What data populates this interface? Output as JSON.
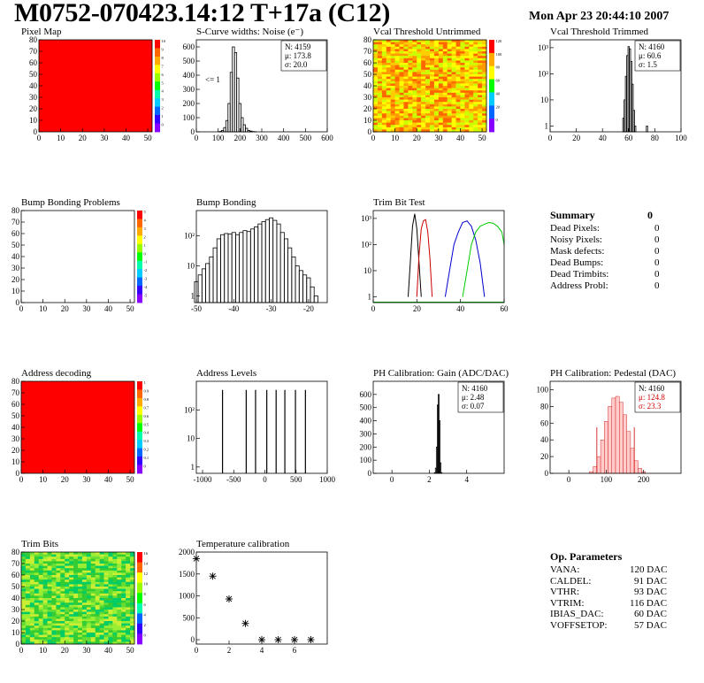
{
  "header": {
    "title": "M0752-070423.14:12 T+17a (C12)",
    "date": "Mon Apr 23 20:44:10 2007"
  },
  "chart_data": [
    {
      "id": "pixel_map",
      "type": "heatmap",
      "title": "Pixel Map",
      "xlim": [
        0,
        52
      ],
      "ylim": [
        0,
        80
      ],
      "xticks": [
        0,
        10,
        20,
        30,
        40,
        50
      ],
      "yticks": [
        0,
        10,
        20,
        30,
        40,
        50,
        60,
        70,
        80
      ],
      "palette_labels": [
        "10",
        "9",
        "8",
        "7",
        "6",
        "5",
        "4",
        "3",
        "2",
        "1",
        "0"
      ],
      "fill": "uniform",
      "value": 10
    },
    {
      "id": "noise",
      "type": "bar",
      "title": "S-Curve widths: Noise (e⁻)",
      "xlim": [
        0,
        600
      ],
      "ylim": [
        0,
        650
      ],
      "xticks": [
        0,
        100,
        200,
        300,
        400,
        500,
        600
      ],
      "yticks": [
        0,
        100,
        200,
        300,
        400,
        500,
        600
      ],
      "annotation": "<= 1",
      "stats": [
        "N: 4159",
        "μ: 173.8",
        "σ: 20.0"
      ],
      "x": [
        110,
        120,
        130,
        140,
        150,
        160,
        170,
        180,
        190,
        200,
        210,
        220,
        230,
        240,
        250,
        260,
        270
      ],
      "values": [
        3,
        10,
        30,
        80,
        200,
        420,
        600,
        560,
        380,
        200,
        100,
        50,
        25,
        10,
        5,
        2,
        1
      ]
    },
    {
      "id": "vcal_untrimmed",
      "type": "heatmap",
      "title": "Vcal Threshold Untrimmed",
      "xlim": [
        0,
        52
      ],
      "ylim": [
        0,
        80
      ],
      "xticks": [
        0,
        10,
        20,
        30,
        40,
        50
      ],
      "yticks": [
        0,
        10,
        20,
        30,
        40,
        50,
        60,
        70,
        80
      ],
      "palette_labels": [
        "120",
        "100",
        "80",
        "60",
        "40",
        "20",
        "0"
      ],
      "fill": "noise",
      "colors": [
        "#ff9900",
        "#ffcc00",
        "#ffff00",
        "#ccff00",
        "#ff6600"
      ]
    },
    {
      "id": "vcal_trimmed",
      "type": "bar",
      "title": "Vcal Threshold Trimmed",
      "log": true,
      "xlim": [
        0,
        100
      ],
      "ylim": [
        0.6,
        2000
      ],
      "xticks": [
        0,
        20,
        40,
        60,
        80,
        100
      ],
      "yticks": [
        1,
        10,
        100,
        1000
      ],
      "ytick_labels": [
        "1",
        "10",
        "10²",
        "10³"
      ],
      "stats": [
        "N: 4160",
        "μ: 60.6",
        "σ:  1.5"
      ],
      "x": [
        56,
        57,
        58,
        59,
        60,
        61,
        62,
        63,
        64,
        65,
        74
      ],
      "values": [
        2,
        10,
        80,
        500,
        1100,
        900,
        300,
        40,
        4,
        1,
        1
      ]
    },
    {
      "id": "bump_problems",
      "type": "heatmap",
      "title": "Bump Bonding Problems",
      "xlim": [
        0,
        52
      ],
      "ylim": [
        0,
        80
      ],
      "xticks": [
        0,
        10,
        20,
        30,
        40,
        50
      ],
      "yticks": [
        0,
        10,
        20,
        30,
        40,
        50,
        60,
        70,
        80
      ],
      "palette_labels": [
        "5",
        "4",
        "3",
        "2",
        "1",
        "0",
        "-1",
        "-2",
        "-3",
        "-4",
        "-5"
      ],
      "fill": "empty"
    },
    {
      "id": "bump_bonding",
      "type": "bar",
      "title": "Bump Bonding",
      "log": true,
      "xlim": [
        -50,
        -15
      ],
      "ylim": [
        0.6,
        700
      ],
      "xticks": [
        -50,
        -40,
        -30,
        -20
      ],
      "yticks": [
        1,
        10,
        100
      ],
      "ytick_labels": [
        "1",
        "10",
        "10²"
      ],
      "x": [
        -50,
        -49,
        -48,
        -47,
        -46,
        -45,
        -44,
        -43,
        -42,
        -41,
        -40,
        -39,
        -38,
        -37,
        -36,
        -35,
        -34,
        -33,
        -32,
        -31,
        -30,
        -29,
        -28,
        -27,
        -26,
        -25,
        -24,
        -23,
        -22,
        -21,
        -20,
        -19,
        -18
      ],
      "values": [
        3,
        5,
        8,
        12,
        20,
        40,
        80,
        110,
        120,
        115,
        130,
        110,
        130,
        150,
        140,
        170,
        200,
        250,
        300,
        350,
        400,
        330,
        250,
        130,
        80,
        40,
        20,
        10,
        7,
        5,
        4,
        2,
        1
      ]
    },
    {
      "id": "trim_bit_test",
      "type": "line",
      "title": "Trim Bit Test",
      "log": true,
      "xlim": [
        0,
        60
      ],
      "ylim": [
        0.6,
        2000
      ],
      "xticks": [
        0,
        20,
        40,
        60
      ],
      "yticks": [
        1,
        10,
        100,
        1000
      ],
      "ytick_labels": [
        "1",
        "10",
        "10²",
        "10³"
      ],
      "series": [
        {
          "color": "#000000",
          "x": [
            16,
            17,
            18,
            19,
            20,
            21,
            22
          ],
          "values": [
            1,
            20,
            500,
            1500,
            400,
            20,
            1
          ]
        },
        {
          "color": "#cc0000",
          "x": [
            20,
            21,
            22,
            23,
            24,
            25,
            26,
            27
          ],
          "values": [
            1,
            40,
            400,
            800,
            900,
            300,
            30,
            1
          ]
        },
        {
          "color": "#0000cc",
          "x": [
            33,
            35,
            37,
            39,
            41,
            43,
            45,
            47,
            49,
            51
          ],
          "values": [
            1,
            10,
            100,
            300,
            700,
            800,
            500,
            150,
            20,
            1
          ]
        },
        {
          "color": "#00cc00",
          "x": [
            41,
            43,
            45,
            47,
            49,
            51,
            53,
            55,
            57,
            59,
            60
          ],
          "values": [
            1,
            10,
            100,
            300,
            500,
            600,
            700,
            650,
            500,
            300,
            100
          ]
        }
      ]
    },
    {
      "id": "address_decoding",
      "type": "heatmap",
      "title": "Address decoding",
      "xlim": [
        0,
        52
      ],
      "ylim": [
        0,
        80
      ],
      "xticks": [
        0,
        10,
        20,
        30,
        40,
        50
      ],
      "yticks": [
        0,
        10,
        20,
        30,
        40,
        50,
        60,
        70,
        80
      ],
      "palette_labels": [
        "1",
        "0.9",
        "0.8",
        "0.7",
        "0.6",
        "0.5",
        "0.4",
        "0.3",
        "0.2",
        "0.1",
        "0"
      ],
      "fill": "uniform",
      "value": 1
    },
    {
      "id": "address_levels",
      "type": "bar",
      "title": "Address Levels",
      "log": true,
      "xlim": [
        -1100,
        1000
      ],
      "ylim": [
        0.6,
        1000
      ],
      "xticks": [
        -1000,
        -500,
        0,
        500,
        1000
      ],
      "yticks": [
        1,
        10,
        100
      ],
      "ytick_labels": [
        "1",
        "10",
        "10²"
      ],
      "x": [
        -680,
        -300,
        -150,
        30,
        180,
        320,
        490,
        650
      ],
      "values": [
        500,
        500,
        500,
        500,
        500,
        500,
        500,
        500
      ]
    },
    {
      "id": "ph_gain",
      "type": "bar",
      "title": "PH Calibration: Gain (ADC/DAC)",
      "xlim": [
        -1,
        6
      ],
      "ylim": [
        0,
        700
      ],
      "xticks": [
        0,
        2,
        4
      ],
      "yticks": [
        0,
        100,
        200,
        300,
        400,
        500,
        600
      ],
      "stats": [
        "N: 4160",
        "μ: 2.48",
        "σ: 0.07"
      ],
      "x": [
        2.3,
        2.35,
        2.4,
        2.45,
        2.5,
        2.55,
        2.6,
        2.65
      ],
      "values": [
        5,
        40,
        200,
        520,
        600,
        400,
        80,
        5
      ]
    },
    {
      "id": "ph_pedestal",
      "type": "bar",
      "title": "PH Calibration: Pedestal (DAC)",
      "xlim": [
        -50,
        300
      ],
      "ylim": [
        0,
        110
      ],
      "xticks": [
        0,
        100,
        200
      ],
      "yticks": [
        0,
        20,
        40,
        60,
        80,
        100
      ],
      "stats": [
        "N: 4160",
        "μ: 124.8",
        "σ: 23.3"
      ],
      "x": [
        60,
        70,
        80,
        90,
        100,
        110,
        120,
        130,
        140,
        150,
        160,
        170,
        180,
        190,
        200
      ],
      "values": [
        2,
        8,
        20,
        40,
        62,
        80,
        90,
        92,
        85,
        70,
        50,
        30,
        15,
        6,
        2
      ]
    },
    {
      "id": "trim_bits",
      "type": "heatmap",
      "title": "Trim Bits",
      "xlim": [
        0,
        52
      ],
      "ylim": [
        0,
        80
      ],
      "xticks": [
        0,
        10,
        20,
        30,
        40,
        50
      ],
      "yticks": [
        0,
        10,
        20,
        30,
        40,
        50,
        60,
        70,
        80
      ],
      "palette_labels": [
        "16",
        "14",
        "12",
        "10",
        "8",
        "6",
        "4",
        "2",
        "0"
      ],
      "fill": "noise",
      "colors": [
        "#33cc33",
        "#66dd33",
        "#99ee33",
        "#00cc66",
        "#ccee33"
      ]
    },
    {
      "id": "temperature",
      "type": "scatter",
      "title": "Temperature calibration",
      "xlim": [
        0,
        8
      ],
      "ylim": [
        -100,
        2000
      ],
      "xticks": [
        0,
        2,
        4,
        6
      ],
      "yticks": [
        0,
        500,
        1000,
        1500,
        2000
      ],
      "x": [
        0,
        1,
        2,
        3,
        4,
        5,
        6,
        7
      ],
      "values": [
        1850,
        1450,
        930,
        370,
        0,
        0,
        0,
        0
      ]
    }
  ],
  "summary": {
    "title": "Summary",
    "value": "0",
    "rows": [
      {
        "label": "Dead Pixels:",
        "value": "0"
      },
      {
        "label": "Noisy Pixels:",
        "value": "0"
      },
      {
        "label": "Mask defects:",
        "value": "0"
      },
      {
        "label": "Dead Bumps:",
        "value": "0"
      },
      {
        "label": "Dead Trimbits:",
        "value": "0"
      },
      {
        "label": "Address Probl:",
        "value": "0"
      }
    ]
  },
  "op_params": {
    "title": "Op. Parameters",
    "rows": [
      {
        "label": "VANA:",
        "value": "120 DAC"
      },
      {
        "label": "CALDEL:",
        "value": "91 DAC"
      },
      {
        "label": "VTHR:",
        "value": "93 DAC"
      },
      {
        "label": "VTRIM:",
        "value": "116 DAC"
      },
      {
        "label": "IBIAS_DAC:",
        "value": "60 DAC"
      },
      {
        "label": "VOFFSETOP:",
        "value": "57 DAC"
      }
    ]
  }
}
